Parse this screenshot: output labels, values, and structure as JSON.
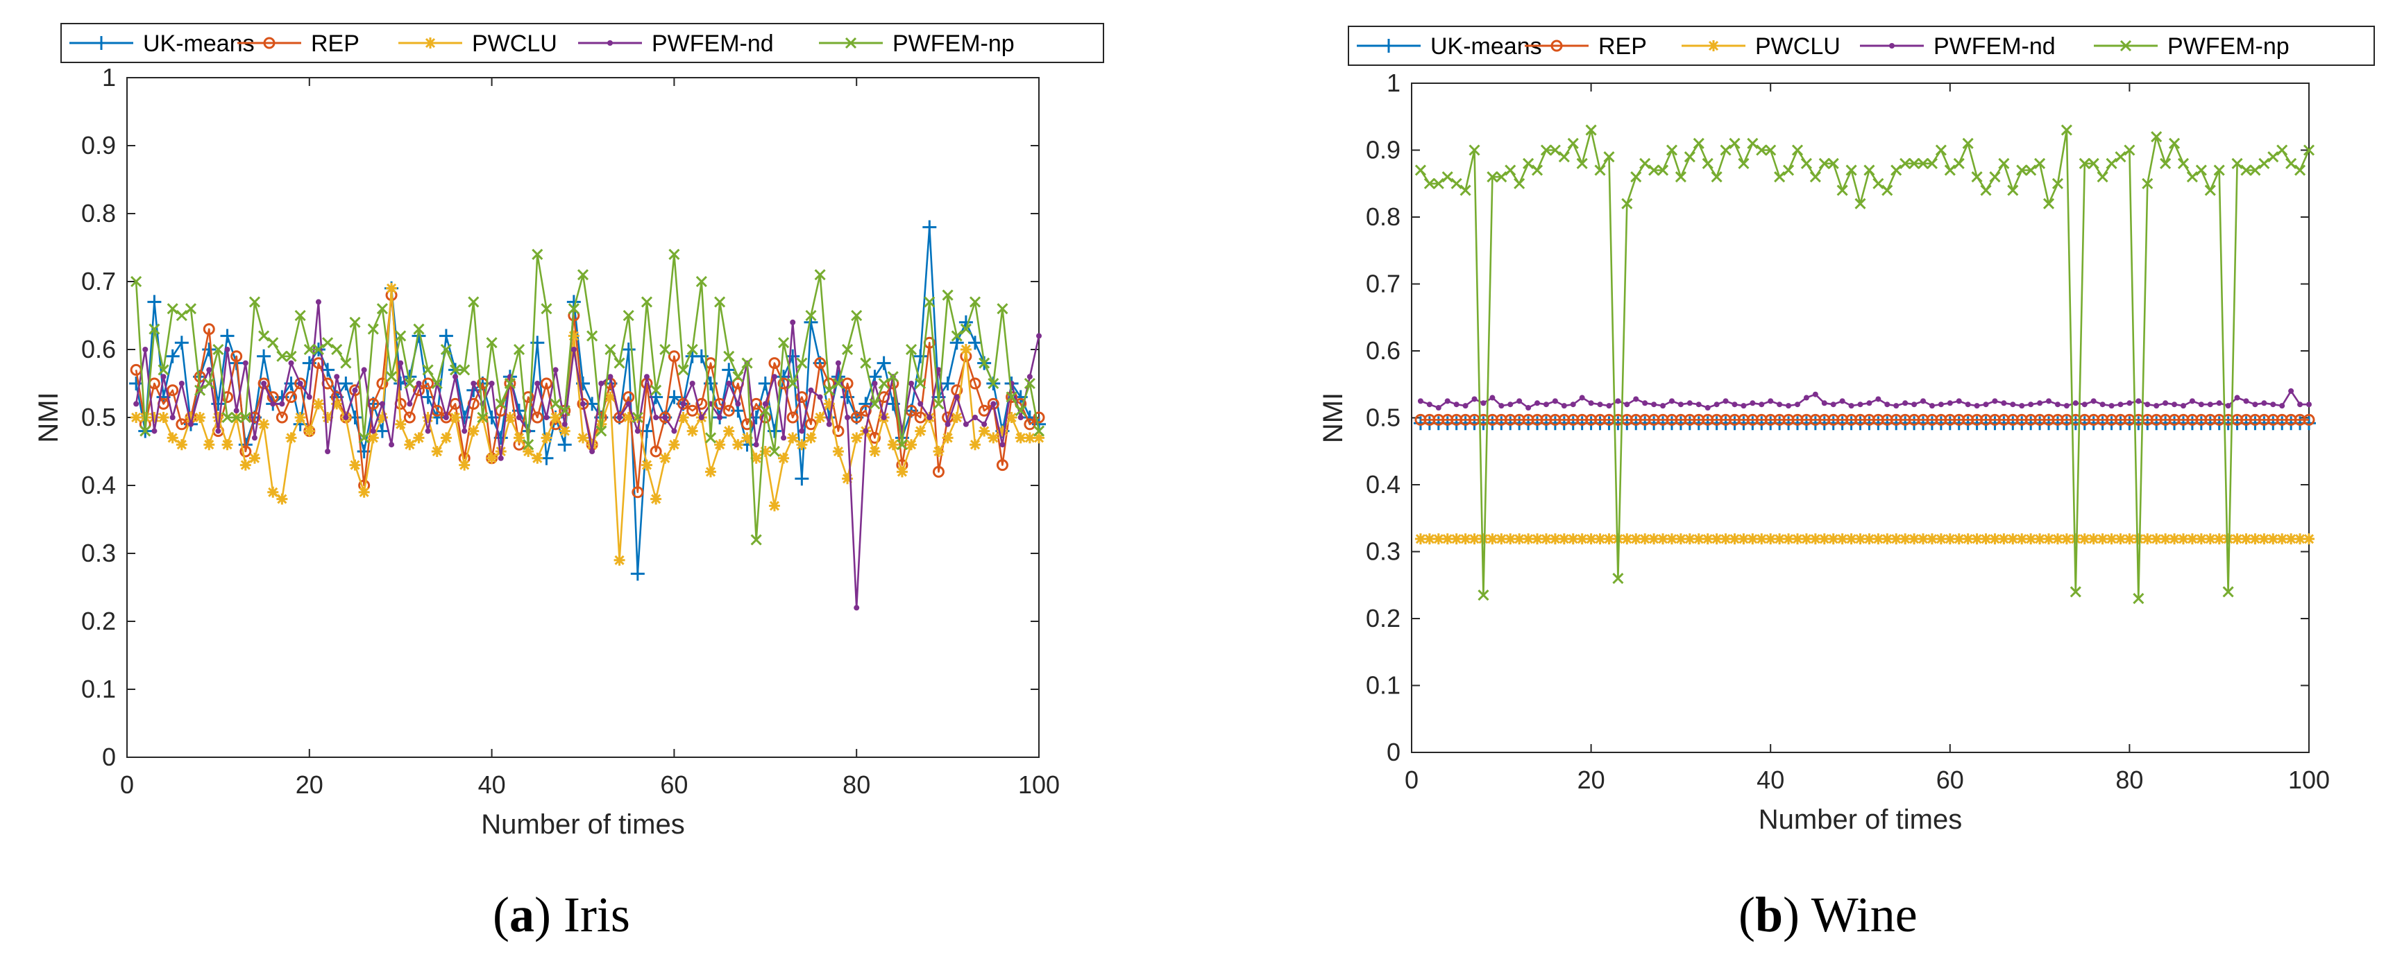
{
  "chart_data": [
    {
      "type": "line",
      "caption": {
        "letter": "a",
        "name": "Iris"
      },
      "xlabel": "Number of times",
      "ylabel": "NMI",
      "xlim": [
        0,
        100
      ],
      "ylim": [
        0,
        1
      ],
      "xticks": [
        0,
        20,
        40,
        60,
        80,
        100
      ],
      "yticks": [
        0,
        0.1,
        0.2,
        0.3,
        0.4,
        0.5,
        0.6,
        0.7,
        0.8,
        0.9,
        1
      ],
      "ytick_labels": [
        "0",
        "0.1",
        "0.2",
        "0.3",
        "0.4",
        "0.5",
        "0.6",
        "0.7",
        "0.8",
        "0.9",
        "1"
      ],
      "legend_position": "top",
      "series": [
        {
          "name": "UK-means",
          "color": "#0072BD",
          "marker": "plus",
          "values": [
            0.55,
            0.48,
            0.67,
            0.53,
            0.59,
            0.61,
            0.49,
            0.56,
            0.6,
            0.52,
            0.62,
            0.58,
            0.46,
            0.5,
            0.59,
            0.52,
            0.53,
            0.55,
            0.49,
            0.58,
            0.6,
            0.57,
            0.53,
            0.55,
            0.5,
            0.45,
            0.52,
            0.48,
            0.69,
            0.55,
            0.56,
            0.62,
            0.53,
            0.5,
            0.62,
            0.57,
            0.5,
            0.54,
            0.55,
            0.5,
            0.47,
            0.56,
            0.51,
            0.48,
            0.61,
            0.44,
            0.5,
            0.46,
            0.67,
            0.55,
            0.52,
            0.5,
            0.55,
            0.5,
            0.6,
            0.27,
            0.48,
            0.53,
            0.5,
            0.53,
            0.52,
            0.59,
            0.59,
            0.55,
            0.5,
            0.57,
            0.51,
            0.46,
            0.5,
            0.55,
            0.48,
            0.56,
            0.59,
            0.41,
            0.64,
            0.58,
            0.5,
            0.56,
            0.53,
            0.5,
            0.52,
            0.56,
            0.58,
            0.52,
            0.47,
            0.51,
            0.59,
            0.78,
            0.53,
            0.55,
            0.61,
            0.64,
            0.61,
            0.58,
            0.55,
            0.48,
            0.55,
            0.53,
            0.5,
            0.49
          ]
        },
        {
          "name": "REP",
          "color": "#D95319",
          "marker": "circle",
          "values": [
            0.57,
            0.49,
            0.55,
            0.52,
            0.54,
            0.49,
            0.5,
            0.56,
            0.63,
            0.48,
            0.53,
            0.59,
            0.45,
            0.5,
            0.55,
            0.53,
            0.5,
            0.53,
            0.55,
            0.48,
            0.58,
            0.55,
            0.53,
            0.5,
            0.54,
            0.4,
            0.52,
            0.55,
            0.68,
            0.52,
            0.5,
            0.54,
            0.55,
            0.51,
            0.5,
            0.52,
            0.44,
            0.52,
            0.55,
            0.44,
            0.51,
            0.55,
            0.46,
            0.53,
            0.5,
            0.55,
            0.49,
            0.51,
            0.65,
            0.52,
            0.46,
            0.5,
            0.55,
            0.5,
            0.53,
            0.39,
            0.55,
            0.45,
            0.5,
            0.59,
            0.52,
            0.51,
            0.52,
            0.58,
            0.52,
            0.51,
            0.55,
            0.49,
            0.52,
            0.5,
            0.58,
            0.55,
            0.5,
            0.53,
            0.49,
            0.58,
            0.55,
            0.48,
            0.55,
            0.5,
            0.51,
            0.47,
            0.53,
            0.55,
            0.43,
            0.51,
            0.5,
            0.61,
            0.42,
            0.5,
            0.54,
            0.59,
            0.55,
            0.51,
            0.52,
            0.43,
            0.53,
            0.52,
            0.49,
            0.5
          ]
        },
        {
          "name": "PWCLU",
          "color": "#EDB120",
          "marker": "star",
          "values": [
            0.5,
            0.5,
            0.5,
            0.5,
            0.47,
            0.46,
            0.5,
            0.5,
            0.46,
            0.5,
            0.46,
            0.5,
            0.43,
            0.44,
            0.49,
            0.39,
            0.38,
            0.47,
            0.5,
            0.48,
            0.52,
            0.5,
            0.52,
            0.5,
            0.43,
            0.39,
            0.47,
            0.5,
            0.69,
            0.49,
            0.46,
            0.47,
            0.5,
            0.45,
            0.47,
            0.5,
            0.43,
            0.48,
            0.5,
            0.44,
            0.45,
            0.5,
            0.47,
            0.45,
            0.44,
            0.47,
            0.5,
            0.48,
            0.62,
            0.47,
            0.46,
            0.49,
            0.53,
            0.29,
            0.5,
            0.5,
            0.43,
            0.38,
            0.44,
            0.46,
            0.5,
            0.48,
            0.5,
            0.42,
            0.46,
            0.48,
            0.46,
            0.47,
            0.44,
            0.45,
            0.37,
            0.44,
            0.47,
            0.46,
            0.47,
            0.5,
            0.52,
            0.45,
            0.41,
            0.47,
            0.48,
            0.45,
            0.5,
            0.46,
            0.42,
            0.46,
            0.48,
            0.5,
            0.45,
            0.47,
            0.5,
            0.6,
            0.46,
            0.48,
            0.47,
            0.48,
            0.5,
            0.47,
            0.47,
            0.47
          ]
        },
        {
          "name": "PWFEM-nd",
          "color": "#7E2F8E",
          "marker": "dot",
          "values": [
            0.52,
            0.6,
            0.48,
            0.56,
            0.5,
            0.55,
            0.49,
            0.54,
            0.57,
            0.48,
            0.6,
            0.51,
            0.58,
            0.47,
            0.55,
            0.52,
            0.52,
            0.58,
            0.55,
            0.53,
            0.67,
            0.45,
            0.56,
            0.5,
            0.54,
            0.57,
            0.48,
            0.52,
            0.46,
            0.58,
            0.52,
            0.55,
            0.48,
            0.55,
            0.5,
            0.56,
            0.48,
            0.55,
            0.52,
            0.55,
            0.44,
            0.56,
            0.5,
            0.48,
            0.55,
            0.5,
            0.57,
            0.49,
            0.6,
            0.52,
            0.45,
            0.55,
            0.56,
            0.5,
            0.52,
            0.48,
            0.56,
            0.5,
            0.5,
            0.48,
            0.52,
            0.55,
            0.5,
            0.52,
            0.5,
            0.55,
            0.52,
            0.58,
            0.46,
            0.52,
            0.56,
            0.47,
            0.64,
            0.48,
            0.54,
            0.53,
            0.49,
            0.58,
            0.5,
            0.22,
            0.48,
            0.55,
            0.5,
            0.56,
            0.48,
            0.55,
            0.52,
            0.5,
            0.57,
            0.49,
            0.53,
            0.49,
            0.5,
            0.49,
            0.52,
            0.46,
            0.55,
            0.5,
            0.56,
            0.62
          ]
        },
        {
          "name": "PWFEM-np",
          "color": "#77AC30",
          "marker": "x",
          "values": [
            0.7,
            0.48,
            0.63,
            0.57,
            0.66,
            0.65,
            0.66,
            0.54,
            0.55,
            0.6,
            0.5,
            0.5,
            0.5,
            0.67,
            0.62,
            0.61,
            0.59,
            0.59,
            0.65,
            0.6,
            0.6,
            0.61,
            0.6,
            0.58,
            0.64,
            0.47,
            0.63,
            0.66,
            0.56,
            0.62,
            0.55,
            0.63,
            0.57,
            0.55,
            0.6,
            0.57,
            0.57,
            0.67,
            0.5,
            0.61,
            0.52,
            0.55,
            0.6,
            0.46,
            0.74,
            0.66,
            0.52,
            0.51,
            0.66,
            0.71,
            0.62,
            0.48,
            0.6,
            0.58,
            0.65,
            0.5,
            0.67,
            0.54,
            0.6,
            0.74,
            0.57,
            0.6,
            0.7,
            0.47,
            0.67,
            0.59,
            0.56,
            0.58,
            0.32,
            0.51,
            0.45,
            0.61,
            0.55,
            0.58,
            0.65,
            0.71,
            0.54,
            0.55,
            0.6,
            0.65,
            0.58,
            0.52,
            0.55,
            0.56,
            0.46,
            0.6,
            0.55,
            0.67,
            0.52,
            0.68,
            0.62,
            0.63,
            0.67,
            0.58,
            0.55,
            0.66,
            0.53,
            0.51,
            0.55,
            0.48
          ]
        }
      ]
    },
    {
      "type": "line",
      "caption": {
        "letter": "b",
        "name": "Wine"
      },
      "xlabel": "Number of times",
      "ylabel": "NMI",
      "xlim": [
        0,
        100
      ],
      "ylim": [
        0,
        1
      ],
      "xticks": [
        0,
        20,
        40,
        60,
        80,
        100
      ],
      "yticks": [
        0,
        0.1,
        0.2,
        0.3,
        0.4,
        0.5,
        0.6,
        0.7,
        0.8,
        0.9,
        1
      ],
      "ytick_labels": [
        "0",
        "0.1",
        "0.2",
        "0.3",
        "0.4",
        "0.5",
        "0.6",
        "0.7",
        "0.8",
        "0.9",
        "1"
      ],
      "legend_position": "top",
      "series": [
        {
          "name": "UK-means",
          "color": "#0072BD",
          "marker": "plus",
          "constant": 0.492
        },
        {
          "name": "REP",
          "color": "#D95319",
          "marker": "circle",
          "constant": 0.497
        },
        {
          "name": "PWCLU",
          "color": "#EDB120",
          "marker": "star",
          "constant": 0.319
        },
        {
          "name": "PWFEM-nd",
          "color": "#7E2F8E",
          "marker": "dot",
          "values": [
            0.525,
            0.52,
            0.515,
            0.525,
            0.52,
            0.518,
            0.528,
            0.522,
            0.53,
            0.518,
            0.52,
            0.525,
            0.515,
            0.522,
            0.52,
            0.525,
            0.518,
            0.52,
            0.53,
            0.522,
            0.52,
            0.518,
            0.525,
            0.52,
            0.528,
            0.522,
            0.52,
            0.518,
            0.525,
            0.52,
            0.522,
            0.52,
            0.515,
            0.52,
            0.525,
            0.52,
            0.518,
            0.522,
            0.52,
            0.525,
            0.52,
            0.518,
            0.52,
            0.53,
            0.535,
            0.522,
            0.52,
            0.525,
            0.518,
            0.52,
            0.522,
            0.528,
            0.52,
            0.518,
            0.522,
            0.52,
            0.525,
            0.518,
            0.52,
            0.522,
            0.525,
            0.52,
            0.518,
            0.52,
            0.525,
            0.522,
            0.52,
            0.518,
            0.52,
            0.522,
            0.525,
            0.52,
            0.518,
            0.522,
            0.52,
            0.525,
            0.52,
            0.518,
            0.52,
            0.522,
            0.525,
            0.52,
            0.518,
            0.522,
            0.52,
            0.518,
            0.525,
            0.52,
            0.52,
            0.522,
            0.518,
            0.53,
            0.525,
            0.52,
            0.522,
            0.52,
            0.518,
            0.54,
            0.52,
            0.52
          ]
        },
        {
          "name": "PWFEM-np",
          "color": "#77AC30",
          "marker": "x",
          "values": [
            0.87,
            0.85,
            0.85,
            0.86,
            0.85,
            0.84,
            0.9,
            0.235,
            0.86,
            0.86,
            0.87,
            0.85,
            0.88,
            0.87,
            0.9,
            0.9,
            0.89,
            0.91,
            0.88,
            0.93,
            0.87,
            0.89,
            0.26,
            0.82,
            0.86,
            0.88,
            0.87,
            0.87,
            0.9,
            0.86,
            0.89,
            0.91,
            0.88,
            0.86,
            0.9,
            0.91,
            0.88,
            0.91,
            0.9,
            0.9,
            0.86,
            0.87,
            0.9,
            0.88,
            0.86,
            0.88,
            0.88,
            0.84,
            0.87,
            0.82,
            0.87,
            0.85,
            0.84,
            0.87,
            0.88,
            0.88,
            0.88,
            0.88,
            0.9,
            0.87,
            0.88,
            0.91,
            0.86,
            0.84,
            0.86,
            0.88,
            0.84,
            0.87,
            0.87,
            0.88,
            0.82,
            0.85,
            0.93,
            0.24,
            0.88,
            0.88,
            0.86,
            0.88,
            0.89,
            0.9,
            0.23,
            0.85,
            0.92,
            0.88,
            0.91,
            0.88,
            0.86,
            0.87,
            0.84,
            0.87,
            0.24,
            0.88,
            0.87,
            0.87,
            0.88,
            0.89,
            0.9,
            0.88,
            0.87,
            0.9
          ]
        }
      ]
    }
  ]
}
